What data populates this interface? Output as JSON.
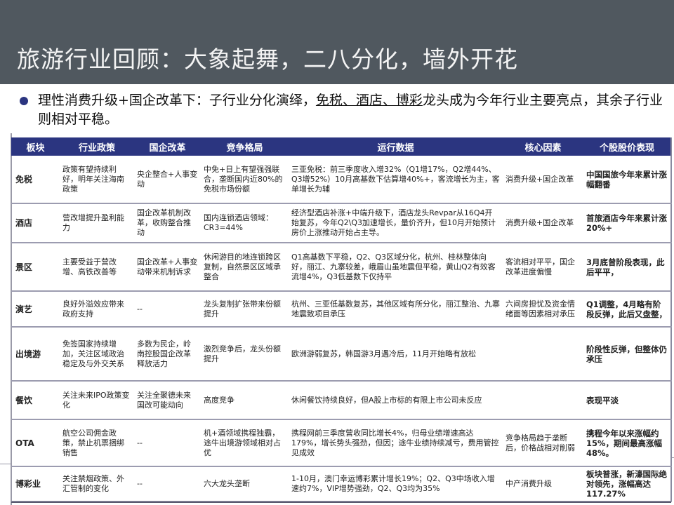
{
  "title": "旅游行业回顾：大象起舞，二八分化，墙外开花",
  "bullet": {
    "before": "理性消费升级+国企改革下：子行业分化演绎，",
    "underlined": "免税、酒店、博彩",
    "after": "龙头成为今年行业主要亮点，其余子行业则相对平稳。"
  },
  "colors": {
    "header_bg": "#50585f",
    "table_header": "#2b3580"
  },
  "table": {
    "headers": [
      "板块",
      "行业政策",
      "国企改革",
      "竞争格局",
      "运行数据",
      "核心因素",
      "个股股价表现"
    ],
    "rows": [
      {
        "cells": [
          "免税",
          "政策有望持续利好，明年关注海南政策",
          "央企整合+人事变动",
          "中免+日上有望强强联合，垄断国内近80%的免税市场份额",
          "三亚免税：前三季度收入增32%（Q1增17%，Q2增44%、Q3增52%）10月高基数下估算增40%+，客流增长为主，客单增长为辅",
          "消费升级+国企改革",
          "中国国旅今年来累计涨幅翻番"
        ]
      },
      {
        "cells": [
          "酒店",
          "营改增提升盈利能力",
          "国企改革机制改革，收购整合推动",
          "国内连锁酒店领域：CR3=44%",
          "经济型酒店补涨+中端升级下，酒店龙头Revpar从16Q4开始复苏，今年Q2\\Q3加速增长，量价齐升，但10月开始预计房价上涨推动开始占主导。",
          "消费升级+国企改革",
          "首旅酒店今年来累计涨20%+"
        ]
      },
      {
        "cells": [
          "景区",
          "主要受益于营改增、高铁改善等",
          "国企改革+人事变动带来机制诉求",
          "休闲游目的地连锁跨区复制，自然景区区域承整合",
          "Q1高基数下平稳，Q2、Q3区域分化，杭州、桂林整体向好，丽江、九寨较差，峨眉山虽地震但平稳，黄山Q2有效客流增4%，Q3低基数下仅持平",
          "客流相对平平，国企改革进度偏慢",
          "3月底曾阶段表现，此后平平，"
        ]
      },
      {
        "cells": [
          "演艺",
          "良好外溢效应带来政府支持",
          "--",
          "龙头复制扩张带来份额提升",
          "杭州、三亚低基数复苏，其他区域有所分化，丽江整治、九寨地震致项目承压",
          "六间房担忧及资金情绪面等因素相对承压",
          "Q1调整，4月略有阶段反弹，此后又盘整，"
        ]
      },
      {
        "cells": [
          "出境游",
          "免签国家持续增加，关注区域政治稳定及与外交关系",
          "多数为民企，岭南控股国企改革释放活力",
          "激烈竞争后，龙头份额提升",
          "欧洲游弱复苏，韩国游3月遇冷后，11月开始略有放松",
          "",
          "阶段性反弹，但整体仍承压"
        ]
      },
      {
        "cells": [
          "餐饮",
          "关注未来IPO政策变化",
          "关注全聚德未来国改可能动向",
          "高度竞争",
          "休闲餐饮持续良好，但A股上市标的有限上市公司未反应",
          "",
          "表现平淡"
        ]
      },
      {
        "cells": [
          "OTA",
          "航空公司佣金政策，禁止机票捆绑销售",
          "--",
          "机+酒领域携程独霸，途牛出境游领域相对占优",
          "携程网前三季度营收同比增长4%，归母业绩增速高达179%，增长势头强劲，但因；途牛业绩持续减亏，费用管控见成效",
          "竞争格局趋于垄断后，价格战相对削弱",
          "携程今年以来涨幅约15%，期间最高涨幅48%。"
        ]
      },
      {
        "cells": [
          "博彩业",
          "关注禁烟政策、外汇管制的变化",
          "--",
          "六大龙头垄断",
          "1-10月，澳门幸运博彩累计增长19%；Q2、Q3中场收入增速约7%，VIP增势强劲，Q2、Q3均为35%",
          "中产消费升级",
          "板块普涨，新濠国际绝对领先，涨幅高达117.27%"
        ]
      }
    ]
  }
}
